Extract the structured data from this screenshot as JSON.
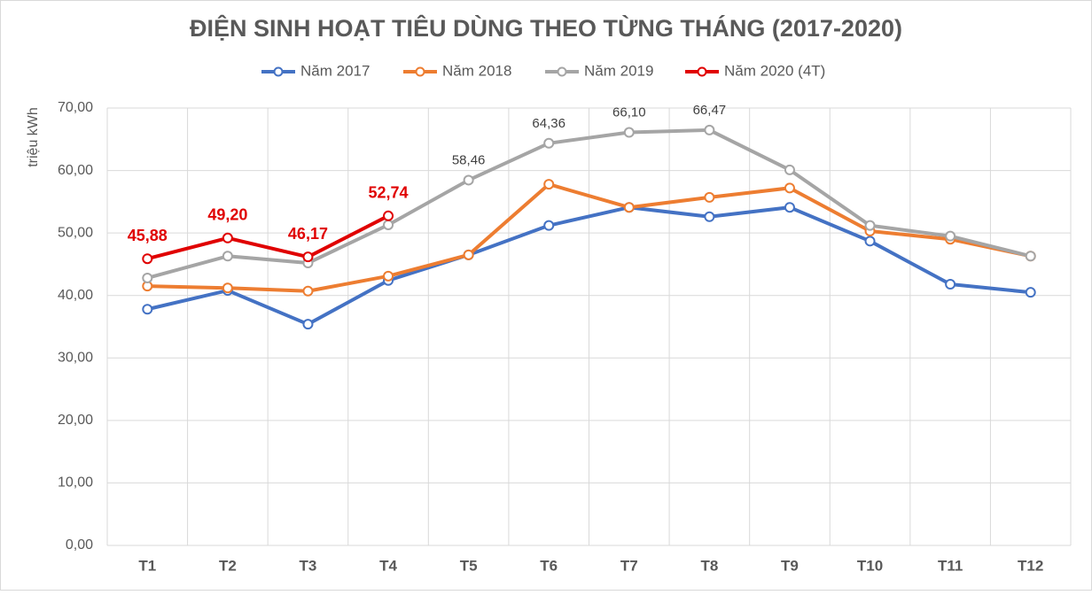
{
  "chart_data": {
    "type": "line",
    "title": "ĐIỆN SINH HOẠT TIÊU DÙNG THEO TỪNG THÁNG (2017-2020)",
    "y_label": "triệu kWh",
    "categories": [
      "T1",
      "T2",
      "T3",
      "T4",
      "T5",
      "T6",
      "T7",
      "T8",
      "T9",
      "T10",
      "T11",
      "T12"
    ],
    "series": [
      {
        "name": "Năm 2017",
        "color": "#4472c4",
        "values": [
          37.8,
          40.8,
          35.4,
          42.4,
          46.5,
          51.2,
          54.1,
          52.6,
          54.1,
          48.7,
          41.8,
          40.5
        ]
      },
      {
        "name": "Năm 2018",
        "color": "#ed7d31",
        "values": [
          41.5,
          41.2,
          40.7,
          43.1,
          46.5,
          57.8,
          54.1,
          55.7,
          57.2,
          50.3,
          49.0,
          46.3
        ]
      },
      {
        "name": "Năm 2019",
        "color": "#a5a5a5",
        "values": [
          42.8,
          46.3,
          45.2,
          51.3,
          58.46,
          64.36,
          66.1,
          66.47,
          60.1,
          51.2,
          49.5,
          46.3
        ],
        "value_labels": [
          null,
          null,
          null,
          null,
          "58,46",
          "64,36",
          "66,10",
          "66,47",
          null,
          null,
          null,
          null
        ]
      },
      {
        "name": "Năm 2020 (4T)",
        "color": "#e00000",
        "values": [
          45.88,
          49.2,
          46.17,
          52.74,
          null,
          null,
          null,
          null,
          null,
          null,
          null,
          null
        ],
        "value_labels": [
          "45,88",
          "49,20",
          "46,17",
          "52,74",
          null,
          null,
          null,
          null,
          null,
          null,
          null,
          null
        ]
      }
    ],
    "ylim": [
      0,
      70
    ],
    "yticks": [
      {
        "value": 0,
        "label": "0,00"
      },
      {
        "value": 10,
        "label": "10,00"
      },
      {
        "value": 20,
        "label": "20,00"
      },
      {
        "value": 30,
        "label": "30,00"
      },
      {
        "value": 40,
        "label": "40,00"
      },
      {
        "value": 50,
        "label": "50,00"
      },
      {
        "value": 60,
        "label": "60,00"
      },
      {
        "value": 70,
        "label": "70,00"
      }
    ],
    "grid": true,
    "legend": "top"
  }
}
